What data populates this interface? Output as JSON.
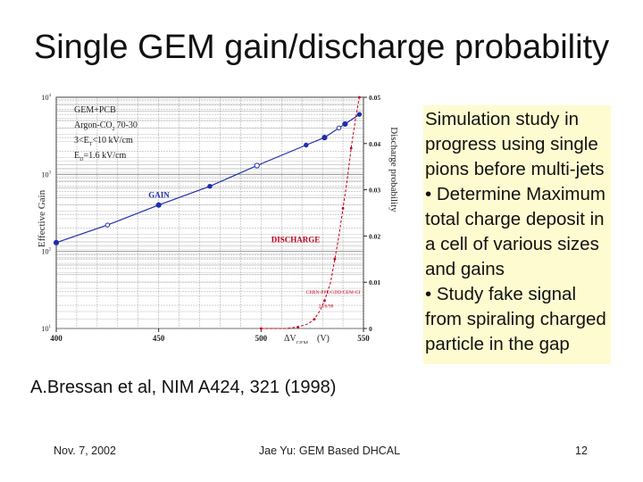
{
  "slide": {
    "title": "Single GEM gain/discharge probability",
    "sidebar_lines": [
      "Simulation study in progress using single pions before multi-jets",
      "• Determine Maximum total charge deposit in a cell of various sizes and gains",
      "• Study fake signal from spiraling charged particle in the gap"
    ],
    "citation": "A.Bressan et al, NIM A424, 321 (1998)",
    "footer": {
      "date": "Nov. 7, 2002",
      "center": "Jae Yu: GEM Based DHCAL",
      "page": "12"
    }
  },
  "colors": {
    "gain": "#1f2fa8",
    "discharge": "#c0001a",
    "sidebar_bg": "#fffbd0",
    "grid": "#8a8a8a"
  },
  "chart_data": {
    "type": "scatter",
    "title": "",
    "xlabel": "ΔV",
    "xlabel_sub": "GEM",
    "xlabel_unit": "(V)",
    "ylabel_left": "Effective Gain",
    "ylabel_right": "Discharge probability",
    "xlim": [
      400,
      550
    ],
    "x_ticks": [
      "400",
      "450",
      "500",
      "550"
    ],
    "y_left_scale": "log",
    "y_left_ticks": [
      {
        "base": "10",
        "exp": "1",
        "value": 10
      },
      {
        "base": "10",
        "exp": "2",
        "value": 100
      },
      {
        "base": "10",
        "exp": "3",
        "value": 1000
      },
      {
        "base": "10",
        "exp": "4",
        "value": 10000
      }
    ],
    "y_left_range": [
      10,
      10000
    ],
    "y_right_ticks": [
      "0",
      "0.01",
      "0.02",
      "0.03",
      "0.04",
      "0.05"
    ],
    "y_right_range": [
      0,
      0.05
    ],
    "legend_lines": [
      "GEM+PCB",
      "Argon-CO",
      "2",
      "70-30",
      "3<E",
      "T",
      "<10 kV/cm",
      "E",
      "D",
      "=1.6 kV/cm"
    ],
    "labels": {
      "gain": "GAIN",
      "discharge": "DISCHARGE"
    },
    "annotation": [
      "CERN-PPE/GDD/GEM-GI",
      "24/6/98"
    ],
    "series": [
      {
        "name": "GAIN",
        "axis": "left",
        "x": [
          400,
          425,
          450,
          475,
          498,
          522,
          531,
          538,
          541,
          548
        ],
        "y": [
          130,
          220,
          400,
          700,
          1300,
          2400,
          3000,
          4000,
          4500,
          6000
        ]
      },
      {
        "name": "DISCHARGE",
        "axis": "right",
        "x": [
          500,
          512,
          518,
          523,
          526,
          529,
          531,
          534,
          536,
          538,
          540,
          542,
          544,
          546,
          548
        ],
        "y": [
          0,
          0,
          0.0003,
          0.001,
          0.002,
          0.004,
          0.006,
          0.01,
          0.015,
          0.02,
          0.026,
          0.032,
          0.039,
          0.045,
          0.05
        ]
      }
    ],
    "fit_lines": [
      "gain-fit",
      "discharge-fit"
    ]
  }
}
